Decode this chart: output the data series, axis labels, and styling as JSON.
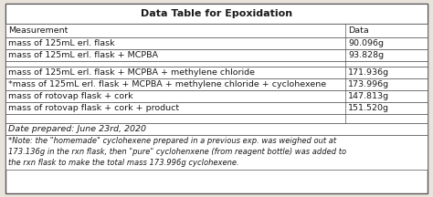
{
  "title": "Data Table for Epoxidation",
  "header": [
    "Measurement",
    "Data"
  ],
  "rows": [
    [
      "mass of 125mL erl. flask",
      "90.096g"
    ],
    [
      "mass of 125mL erl. flask + MCPBA",
      "93.828g"
    ],
    [
      "",
      ""
    ],
    [
      "mass of 125mL erl. flask + MCPBA + methylene chloride",
      "171.936g"
    ],
    [
      "*mass of 125mL erl. flask + MCPBA + methylene chloride + cyclohexene",
      "173.996g"
    ],
    [
      "mass of rotovap flask + cork",
      "147.813g"
    ],
    [
      "mass of rotovap flask + cork + product",
      "151.520g"
    ],
    [
      "",
      ""
    ],
    [
      "Date prepared: June 23rd, 2020",
      ""
    ],
    [
      "*Note: the \"homemade\" cyclohexene prepared in a previous exp. was weighed out at\n173.136g in the rxn flask, then \"pure\" cyclohenxene (from reagent bottle) was added to\nthe rxn flask to make the total mass 173.996g cyclohexene.",
      ""
    ]
  ],
  "bg_color": "#ffffff",
  "outer_bg": "#e8e4dc",
  "border_color": "#555555",
  "text_color": "#1a1a1a",
  "font_size": 6.8,
  "title_font_size": 8.0,
  "col_split": 0.805
}
